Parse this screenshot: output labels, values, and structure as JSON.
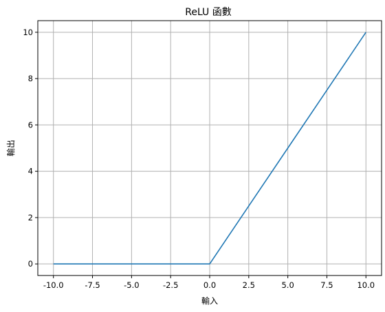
{
  "chart_data": {
    "type": "line",
    "title": "ReLU 函數",
    "xlabel": "輸入",
    "ylabel": "輸出",
    "xlim": [
      -11,
      11
    ],
    "ylim": [
      -0.5,
      10.5
    ],
    "grid": true,
    "x_ticks": [
      -10,
      -7.5,
      -5,
      -2.5,
      0,
      2.5,
      5,
      7.5,
      10
    ],
    "x_tick_labels": [
      "-10.0",
      "-7.5",
      "-5.0",
      "-2.5",
      "0.0",
      "2.5",
      "5.0",
      "7.5",
      "10.0"
    ],
    "y_ticks": [
      0,
      2,
      4,
      6,
      8,
      10
    ],
    "y_tick_labels": [
      "0",
      "2",
      "4",
      "6",
      "8",
      "10"
    ],
    "series": [
      {
        "color": "#1f77b4",
        "x": [
          -10,
          -7.5,
          -5,
          -2.5,
          0,
          2.5,
          5,
          7.5,
          10
        ],
        "y": [
          0,
          0,
          0,
          0,
          0,
          2.5,
          5,
          7.5,
          10
        ]
      }
    ]
  }
}
